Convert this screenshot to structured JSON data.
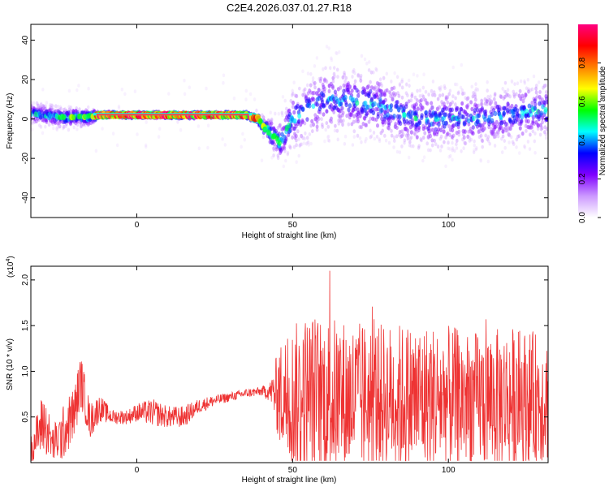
{
  "title": "C2E4.2026.037.01.27.R18",
  "chart_data": [
    {
      "type": "heatmap",
      "xlabel": "Height of straight line (km)",
      "ylabel": "Frequency (Hz)",
      "xlim": [
        -34,
        132
      ],
      "ylim": [
        -50,
        48
      ],
      "xticks": [
        0,
        50,
        100
      ],
      "xtick_labels": [
        "0",
        "50",
        "100"
      ],
      "yticks": [
        40,
        20,
        0,
        -20,
        -40
      ],
      "ytick_labels": [
        "40",
        "20",
        "0",
        "-20",
        "-40"
      ],
      "colorbar": {
        "label": "Normalized spectral amplitude",
        "range": [
          0,
          1
        ],
        "ticks": [
          0.0,
          0.2,
          0.4,
          0.6,
          0.8
        ],
        "tick_labels": [
          "0.0",
          "0.2",
          "0.4",
          "0.6",
          "0.8"
        ],
        "colormap": [
          "#ffffff",
          "#cc99ff",
          "#7f00ff",
          "#0000ff",
          "#00ffff",
          "#00ff00",
          "#ffff00",
          "#ff8000",
          "#ff0000",
          "#ff0080"
        ]
      },
      "ridge": [
        {
          "x": -34,
          "y": 3,
          "amp": 0.45,
          "spread": 4
        },
        {
          "x": -25,
          "y": 1,
          "amp": 0.5,
          "spread": 4
        },
        {
          "x": -15,
          "y": 1,
          "amp": 0.6,
          "spread": 3
        },
        {
          "x": -12,
          "y": 2,
          "amp": 0.95,
          "spread": 1
        },
        {
          "x": 10,
          "y": 2,
          "amp": 0.95,
          "spread": 1
        },
        {
          "x": 35,
          "y": 2,
          "amp": 0.95,
          "spread": 1
        },
        {
          "x": 39,
          "y": 0,
          "amp": 0.8,
          "spread": 2
        },
        {
          "x": 42,
          "y": -6,
          "amp": 0.6,
          "spread": 5
        },
        {
          "x": 46,
          "y": -12,
          "amp": 0.5,
          "spread": 8
        },
        {
          "x": 50,
          "y": 0,
          "amp": 0.45,
          "spread": 12
        },
        {
          "x": 60,
          "y": 10,
          "amp": 0.4,
          "spread": 14
        },
        {
          "x": 75,
          "y": 8,
          "amp": 0.45,
          "spread": 14
        },
        {
          "x": 90,
          "y": 0,
          "amp": 0.45,
          "spread": 12
        },
        {
          "x": 110,
          "y": 0,
          "amp": 0.4,
          "spread": 12
        },
        {
          "x": 132,
          "y": 5,
          "amp": 0.45,
          "spread": 12
        }
      ]
    },
    {
      "type": "line",
      "xlabel": "Height of straight line (km)",
      "ylabel": "SNR (10 * v/v)",
      "multiplier": "(x10",
      "multiplier_exp": "4",
      "multiplier_close": ")",
      "color": "#ee3333",
      "xlim": [
        -34,
        132
      ],
      "ylim": [
        0,
        2.15
      ],
      "xticks": [
        0,
        50,
        100
      ],
      "xtick_labels": [
        "0",
        "50",
        "100"
      ],
      "yticks": [
        0.5,
        1.0,
        1.5,
        2.0
      ],
      "ytick_labels": [
        "0.5",
        "1.0",
        "1.5",
        "2.0"
      ],
      "series": [
        {
          "x": [
            -34,
            -30,
            -27,
            -24,
            -20,
            -18,
            -15,
            -12,
            -8,
            -3,
            0,
            5,
            10,
            15,
            20,
            25,
            30,
            35,
            40,
            43,
            46,
            50,
            55,
            60,
            70,
            80,
            90,
            100,
            110,
            120,
            132
          ],
          "y": [
            0.15,
            0.45,
            0.2,
            0.3,
            0.55,
            0.9,
            0.45,
            0.6,
            0.5,
            0.5,
            0.55,
            0.55,
            0.5,
            0.5,
            0.62,
            0.68,
            0.72,
            0.76,
            0.78,
            0.78,
            0.75,
            0.7,
            0.72,
            0.72,
            0.7,
            0.72,
            0.7,
            0.7,
            0.68,
            0.7,
            0.7
          ],
          "spread": [
            0.15,
            0.35,
            0.2,
            0.3,
            0.3,
            0.3,
            0.2,
            0.15,
            0.08,
            0.08,
            0.1,
            0.15,
            0.12,
            0.12,
            0.08,
            0.06,
            0.05,
            0.05,
            0.05,
            0.12,
            0.6,
            0.8,
            0.95,
            0.9,
            0.85,
            0.8,
            0.85,
            0.8,
            0.75,
            0.8,
            0.7
          ]
        }
      ]
    }
  ]
}
